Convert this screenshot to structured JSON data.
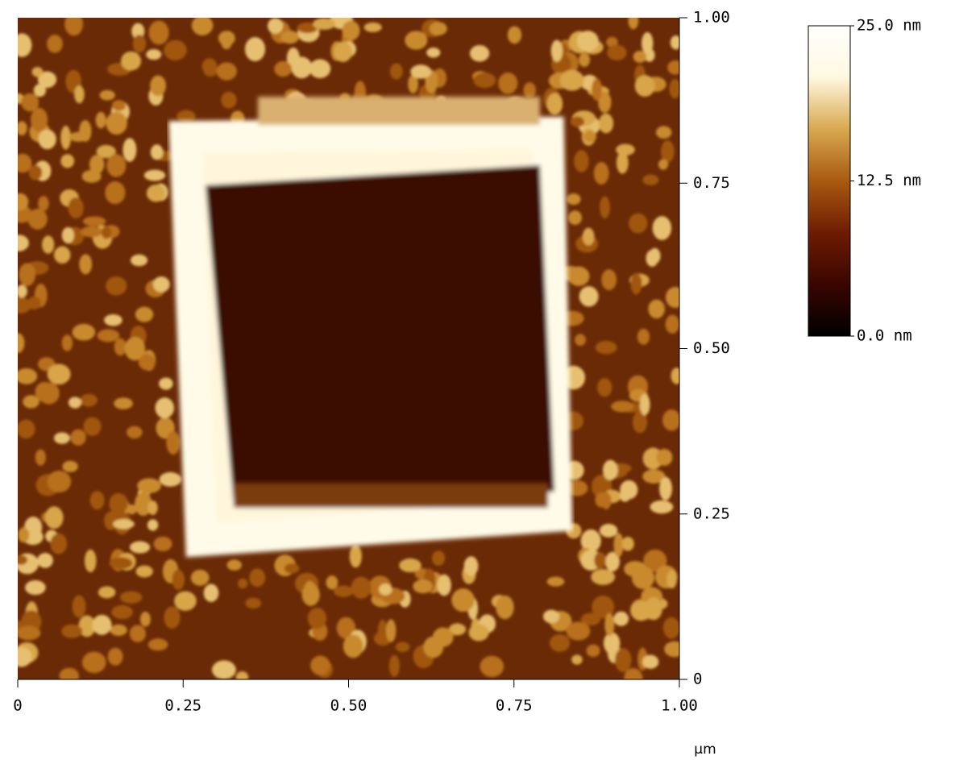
{
  "chart_data": {
    "type": "heatmap",
    "x_unit": "µm",
    "xlim": [
      0,
      1
    ],
    "ylim": [
      0,
      1
    ],
    "xticks": [
      0,
      0.25,
      {
        "value": 0.5,
        "label": "0.50"
      },
      0.75,
      {
        "value": 1,
        "label": "1.00"
      }
    ],
    "yticks": [
      0,
      0.25,
      {
        "value": 0.5,
        "label": "0.50"
      },
      0.75,
      {
        "value": 1,
        "label": "1.00"
      }
    ],
    "colorbar": {
      "lim": [
        0,
        25
      ],
      "ticks": [
        {
          "value": 0,
          "label": "0.0 nm"
        },
        {
          "value": 12.5,
          "label": "12.5 nm"
        },
        {
          "value": 25,
          "label": "25.0 nm"
        }
      ],
      "colors": [
        "#000000",
        "#3a0500",
        "#6e1c02",
        "#a85a10",
        "#d8a850",
        "#fff8e0",
        "#ffffff"
      ]
    }
  }
}
